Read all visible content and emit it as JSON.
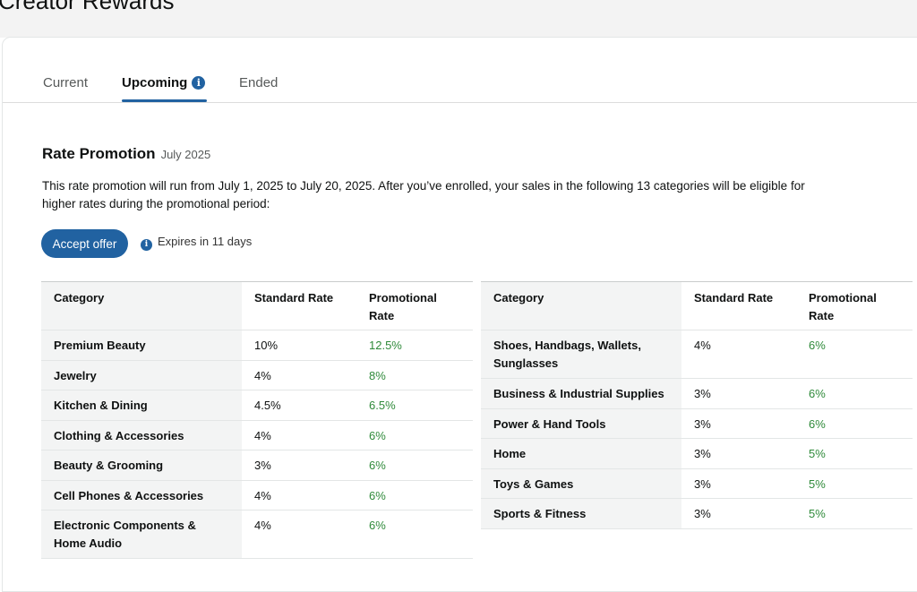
{
  "app": {
    "title": "Creator Rewards"
  },
  "tabs": [
    {
      "label": "Current"
    },
    {
      "label": "Upcoming",
      "active": true,
      "icon": "info-icon"
    },
    {
      "label": "Ended"
    }
  ],
  "promotion": {
    "title": "Rate Promotion",
    "date": "July 2025",
    "description": "This rate promotion will run from July 1, 2025 to July 20, 2025. After you’ve enrolled, your sales in the following 13 categories will be eligible for higher rates during the promotional period:",
    "accept_label": "Accept offer",
    "expires_text": "Expires in 11 days"
  },
  "table_headers": {
    "category": "Category",
    "standard": "Standard Rate",
    "promotional": "Promotional Rate"
  },
  "left_table": [
    {
      "category": "Premium Beauty",
      "standard": "10%",
      "promotional": "12.5%"
    },
    {
      "category": "Jewelry",
      "standard": "4%",
      "promotional": "8%"
    },
    {
      "category": "Kitchen & Dining",
      "standard": "4.5%",
      "promotional": "6.5%"
    },
    {
      "category": "Clothing & Accessories",
      "standard": "4%",
      "promotional": "6%"
    },
    {
      "category": "Beauty & Grooming",
      "standard": "3%",
      "promotional": "6%"
    },
    {
      "category": "Cell Phones & Accessories",
      "standard": "4%",
      "promotional": "6%"
    },
    {
      "category": "Electronic Components & Home Audio",
      "standard": "4%",
      "promotional": "6%"
    }
  ],
  "right_table": [
    {
      "category": "Shoes, Handbags, Wallets, Sunglasses",
      "standard": "4%",
      "promotional": "6%"
    },
    {
      "category": "Business & Industrial Supplies",
      "standard": "3%",
      "promotional": "6%"
    },
    {
      "category": "Power & Hand Tools",
      "standard": "3%",
      "promotional": "6%"
    },
    {
      "category": "Home",
      "standard": "3%",
      "promotional": "5%"
    },
    {
      "category": "Toys & Games",
      "standard": "3%",
      "promotional": "5%"
    },
    {
      "category": "Sports & Fitness",
      "standard": "3%",
      "promotional": "5%"
    }
  ],
  "colors": {
    "accent": "#2162a1",
    "promo_rate": "#2f8a3a",
    "category_bg": "#f3f4f4"
  }
}
